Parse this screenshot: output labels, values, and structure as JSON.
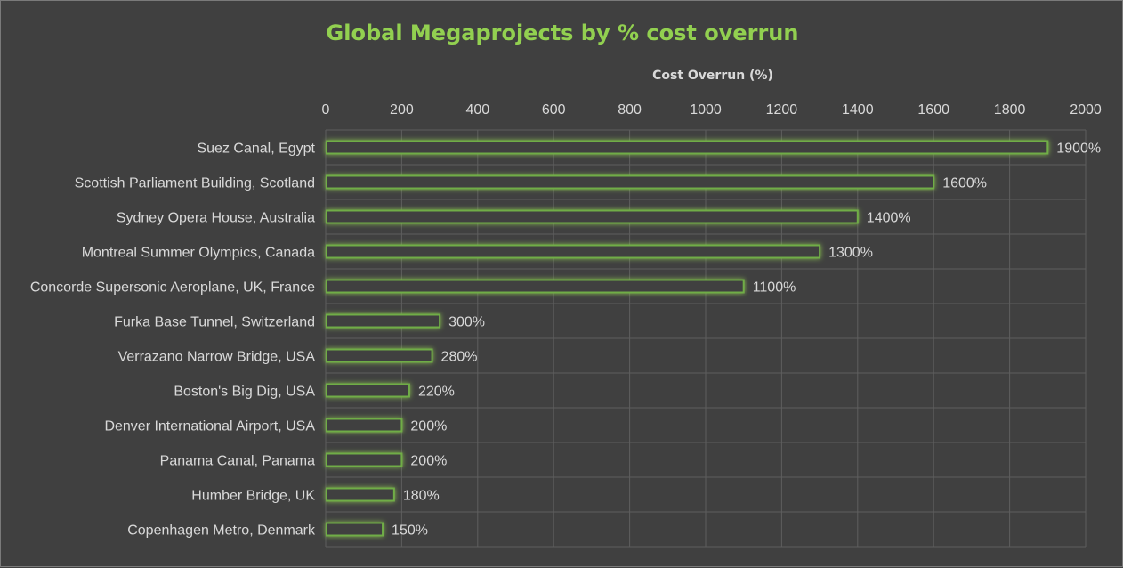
{
  "chart_data": {
    "type": "bar",
    "orientation": "horizontal",
    "title": "Global Megaprojects by % cost overrun",
    "xlabel": "Cost Overrun (%)",
    "ylabel": "",
    "xlim": [
      0,
      2000
    ],
    "x_ticks": [
      0,
      200,
      400,
      600,
      800,
      1000,
      1200,
      1400,
      1600,
      1800,
      2000
    ],
    "x_axis_position": "top",
    "grid": true,
    "legend": "none",
    "categories": [
      "Suez Canal, Egypt",
      "Scottish Parliament Building, Scotland",
      "Sydney Opera House, Australia",
      "Montreal Summer Olympics, Canada",
      "Concorde Supersonic Aeroplane, UK, France",
      "Furka Base Tunnel, Switzerland",
      "Verrazano Narrow Bridge, USA",
      "Boston's Big Dig, USA",
      "Denver International Airport, USA",
      "Panama Canal, Panama",
      "Humber Bridge, UK",
      "Copenhagen Metro, Denmark"
    ],
    "values": [
      1900,
      1600,
      1400,
      1300,
      1100,
      300,
      280,
      220,
      200,
      200,
      180,
      150
    ],
    "data_labels": [
      "1900%",
      "1600%",
      "1400%",
      "1300%",
      "1100%",
      "300%",
      "280%",
      "220%",
      "200%",
      "200%",
      "180%",
      "150%"
    ],
    "colors": {
      "background": "#404040",
      "bar_outline": "#70ad47",
      "bar_glow": "#92d050",
      "title": "#92d050",
      "text": "#d9d9d9",
      "grid": "#5e5e5e"
    }
  }
}
